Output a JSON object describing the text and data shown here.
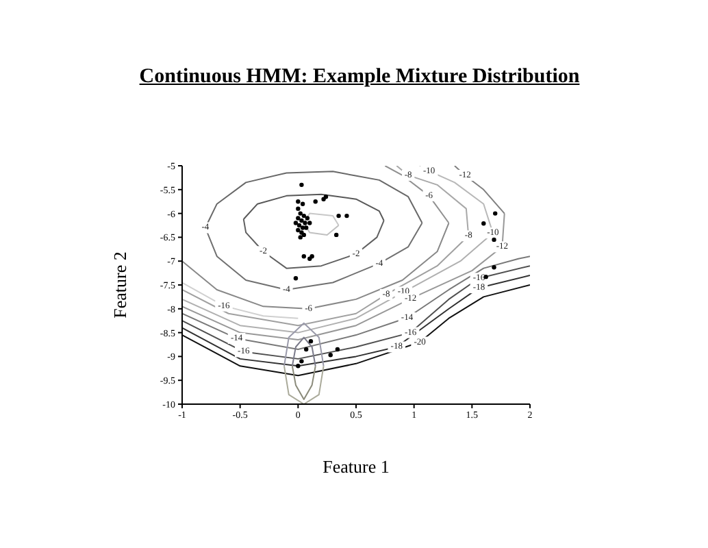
{
  "chart_data": {
    "type": "scatter",
    "title": "Continuous HMM: Example Mixture Distribution",
    "xlabel": "Feature 1",
    "ylabel": "Feature 2",
    "xlim": [
      -1,
      2
    ],
    "ylim": [
      -10,
      -5
    ],
    "xticks": [
      -1,
      -0.5,
      0,
      0.5,
      1,
      1.5,
      2
    ],
    "yticks": [
      -10,
      -9.5,
      -9,
      -8.5,
      -8,
      -7.5,
      -7,
      -6.5,
      -6,
      -5.5,
      -5
    ],
    "grid": false,
    "legend": false,
    "series": [
      {
        "type": "line",
        "marker": "none",
        "color": "#c8c8c8",
        "x": [
          0.05,
          0.1,
          0.3,
          0.35
        ],
        "values": [
          -6.2,
          -6.0,
          -6.05,
          -6.25
        ]
      },
      {
        "type": "line",
        "marker": "none",
        "color": "#c0c0c0",
        "x": [
          0.05,
          0.1,
          0.25,
          0.35
        ],
        "values": [
          -6.2,
          -6.4,
          -6.45,
          -6.25
        ]
      },
      {
        "type": "line",
        "marker": "none",
        "color": "#585858",
        "x": [
          -0.47,
          -0.35,
          -0.1,
          0.2,
          0.5,
          0.7,
          0.74
        ],
        "values": [
          -6.12,
          -5.8,
          -5.63,
          -5.6,
          -5.7,
          -5.95,
          -6.15
        ]
      },
      {
        "type": "line",
        "marker": "none",
        "color": "#606060",
        "x": [
          -0.47,
          -0.45,
          -0.3,
          -0.1,
          0.2,
          0.5,
          0.68,
          0.74
        ],
        "values": [
          -6.12,
          -6.4,
          -6.8,
          -7.15,
          -7.1,
          -6.85,
          -6.5,
          -6.15
        ]
      },
      {
        "type": "line",
        "marker": "none",
        "color": "#686868",
        "x": [
          -0.8,
          -0.7,
          -0.45,
          -0.1,
          0.3,
          0.7,
          0.95,
          1.07
        ],
        "values": [
          -6.3,
          -5.8,
          -5.35,
          -5.15,
          -5.12,
          -5.3,
          -5.65,
          -6.2
        ]
      },
      {
        "type": "line",
        "marker": "none",
        "color": "#707070",
        "x": [
          -0.8,
          -0.7,
          -0.45,
          -0.1,
          0.3,
          0.7,
          0.95,
          1.07
        ],
        "values": [
          -6.3,
          -6.9,
          -7.4,
          -7.6,
          -7.45,
          -7.05,
          -6.7,
          -6.2
        ]
      },
      {
        "type": "line",
        "marker": "none",
        "color": "#888888",
        "x": [
          -1,
          -0.7,
          -0.3,
          0.09,
          0.5,
          0.9,
          1.2,
          1.3
        ],
        "values": [
          -7.0,
          -7.6,
          -7.95,
          -8.0,
          -7.8,
          -7.4,
          -6.8,
          -6.2
        ]
      },
      {
        "type": "line",
        "marker": "none",
        "color": "#909090",
        "x": [
          0.75,
          0.9,
          1.13,
          1.3
        ],
        "values": [
          -5.0,
          -5.2,
          -5.63,
          -6.2
        ]
      },
      {
        "type": "line",
        "marker": "none",
        "color": "#a0a0a0",
        "x": [
          -1,
          -0.6,
          0,
          0.5,
          0.76,
          1.2,
          1.47
        ],
        "values": [
          -7.6,
          -8.1,
          -8.35,
          -8.1,
          -7.7,
          -7.1,
          -6.47
        ]
      },
      {
        "type": "line",
        "marker": "none",
        "color": "#a8a8a8",
        "x": [
          0.85,
          0.95,
          1.2,
          1.45,
          1.47
        ],
        "values": [
          -5.0,
          -5.2,
          -5.4,
          -5.9,
          -6.47
        ]
      },
      {
        "type": "line",
        "marker": "none",
        "color": "#b0b0b0",
        "x": [
          -1,
          -0.5,
          0,
          0.5,
          0.91,
          1.4,
          1.68
        ],
        "values": [
          -7.8,
          -8.35,
          -8.5,
          -8.2,
          -7.65,
          -7.0,
          -6.41
        ]
      },
      {
        "type": "line",
        "marker": "none",
        "color": "#b8b8b8",
        "x": [
          1.05,
          1.13,
          1.35,
          1.6,
          1.68
        ],
        "values": [
          -5.0,
          -5.11,
          -5.35,
          -5.8,
          -6.41
        ]
      },
      {
        "type": "line",
        "marker": "none",
        "color": "#989898",
        "x": [
          -1,
          -0.5,
          0,
          0.5,
          0.97,
          1.5,
          1.76,
          1.78
        ],
        "values": [
          -7.95,
          -8.5,
          -8.65,
          -8.35,
          -7.79,
          -7.2,
          -6.7,
          -6.0
        ]
      },
      {
        "type": "line",
        "marker": "none",
        "color": "#808080",
        "x": [
          1.35,
          1.44,
          1.6,
          1.78
        ],
        "values": [
          -5.0,
          -5.2,
          -5.5,
          -6.0
        ]
      },
      {
        "type": "line",
        "marker": "none",
        "color": "#787878",
        "x": [
          -1,
          -0.53,
          0,
          0.5,
          0.94,
          1.3,
          1.6,
          1.9,
          2
        ],
        "values": [
          -8.1,
          -8.62,
          -8.85,
          -8.55,
          -8.19,
          -7.6,
          -7.15,
          -6.95,
          -6.9
        ]
      },
      {
        "type": "line",
        "marker": "none",
        "color": "#505050",
        "x": [
          -1,
          -0.47,
          0,
          0.5,
          0.97,
          1.3,
          1.56,
          2
        ],
        "values": [
          -8.25,
          -8.9,
          -9.05,
          -8.8,
          -8.5,
          -7.8,
          -7.36,
          -7.1
        ]
      },
      {
        "type": "line",
        "marker": "none",
        "color": "#303030",
        "x": [
          -1,
          -0.5,
          0,
          0.5,
          0.85,
          1.3,
          1.56,
          2
        ],
        "values": [
          -8.4,
          -9.05,
          -9.2,
          -9.0,
          -8.8,
          -8.0,
          -7.56,
          -7.3
        ]
      },
      {
        "type": "line",
        "marker": "none",
        "color": "#101010",
        "x": [
          -1,
          -0.5,
          0,
          0.5,
          1.05,
          1.3,
          1.6,
          2
        ],
        "values": [
          -8.55,
          -9.2,
          -9.4,
          -9.15,
          -8.7,
          -8.2,
          -7.75,
          -7.5
        ]
      },
      {
        "type": "line",
        "marker": "none",
        "color": "#d0d0d0",
        "x": [
          -1,
          -0.64,
          -0.3,
          0
        ],
        "values": [
          -7.45,
          -7.94,
          -8.15,
          -8.2
        ]
      },
      {
        "type": "line",
        "marker": "none",
        "color": "#7a7a8a",
        "x": [
          -0.05,
          -0.02,
          0.05,
          0.12,
          0.15
        ],
        "values": [
          -9.2,
          -8.8,
          -8.6,
          -8.8,
          -9.2
        ]
      },
      {
        "type": "line",
        "marker": "none",
        "color": "#8a8a7a",
        "x": [
          -0.05,
          -0.02,
          0.05,
          0.12,
          0.15
        ],
        "values": [
          -9.2,
          -9.6,
          -9.9,
          -9.6,
          -9.2
        ]
      },
      {
        "type": "line",
        "marker": "none",
        "color": "#9a9aaa",
        "x": [
          -0.12,
          -0.08,
          0.05,
          0.18,
          0.22
        ],
        "values": [
          -9.2,
          -8.6,
          -8.3,
          -8.6,
          -9.2
        ]
      },
      {
        "type": "line",
        "marker": "none",
        "color": "#aaaa9a",
        "x": [
          -0.12,
          -0.08,
          0.05,
          0.18,
          0.22
        ],
        "values": [
          -9.2,
          -9.8,
          -10,
          -9.8,
          -9.2
        ]
      },
      {
        "type": "scatter",
        "marker": "circle",
        "color": "#000000",
        "x": [
          0.0,
          0.02,
          0.05,
          0.0,
          0.03,
          0.06,
          -0.02,
          0.01,
          0.04,
          0.07,
          0.0,
          0.03,
          0.05,
          0.08,
          0.1,
          0.02,
          0.0,
          0.04,
          0.22,
          0.24,
          0.15,
          0.35,
          0.33,
          0.05,
          0.1,
          0.12,
          -0.02,
          0.42,
          0.03,
          1.7,
          1.6,
          1.69,
          1.69,
          1.62,
          0.07,
          0.11,
          0.34,
          0.28,
          0.03,
          0.0
        ],
        "values": [
          -5.9,
          -6.0,
          -6.05,
          -6.1,
          -6.15,
          -6.2,
          -6.2,
          -6.25,
          -6.3,
          -6.3,
          -6.35,
          -6.4,
          -6.45,
          -6.1,
          -6.2,
          -6.5,
          -5.75,
          -5.8,
          -5.7,
          -5.65,
          -5.75,
          -6.05,
          -6.45,
          -6.9,
          -6.95,
          -6.9,
          -7.36,
          -6.05,
          -5.4,
          -6.0,
          -6.21,
          -6.55,
          -7.13,
          -7.33,
          -8.85,
          -8.68,
          -8.85,
          -8.97,
          -9.1,
          -9.2
        ]
      }
    ],
    "annotations": [
      {
        "text": "-2",
        "x": 0.5,
        "y": -6.85
      },
      {
        "text": "-2",
        "x": -0.3,
        "y": -6.8
      },
      {
        "text": "-4",
        "x": -0.8,
        "y": -6.3
      },
      {
        "text": "-4",
        "x": 0.7,
        "y": -7.05
      },
      {
        "text": "-4",
        "x": -0.1,
        "y": -7.6
      },
      {
        "text": "-6",
        "x": 0.09,
        "y": -8.0
      },
      {
        "text": "-6",
        "x": 1.13,
        "y": -5.63
      },
      {
        "text": "-8",
        "x": 0.95,
        "y": -5.2
      },
      {
        "text": "-8",
        "x": 1.47,
        "y": -6.47
      },
      {
        "text": "-8",
        "x": 0.76,
        "y": -7.7
      },
      {
        "text": "-10",
        "x": 1.13,
        "y": -5.11
      },
      {
        "text": "-10",
        "x": 1.68,
        "y": -6.41
      },
      {
        "text": "-10",
        "x": 0.91,
        "y": -7.65
      },
      {
        "text": "-12",
        "x": 1.44,
        "y": -5.2
      },
      {
        "text": "-12",
        "x": 1.76,
        "y": -6.7
      },
      {
        "text": "-12",
        "x": 0.97,
        "y": -7.79
      },
      {
        "text": "-14",
        "x": -0.53,
        "y": -8.62
      },
      {
        "text": "-14",
        "x": 0.94,
        "y": -8.19
      },
      {
        "text": "-16",
        "x": -0.47,
        "y": -8.9
      },
      {
        "text": "-16",
        "x": 0.97,
        "y": -8.5
      },
      {
        "text": "-16",
        "x": 1.56,
        "y": -7.36
      },
      {
        "text": "-16",
        "x": -0.64,
        "y": -7.94
      },
      {
        "text": "-18",
        "x": 0.85,
        "y": -8.8
      },
      {
        "text": "-18",
        "x": 1.56,
        "y": -7.56
      },
      {
        "text": "-20",
        "x": 1.05,
        "y": -8.7
      }
    ]
  }
}
